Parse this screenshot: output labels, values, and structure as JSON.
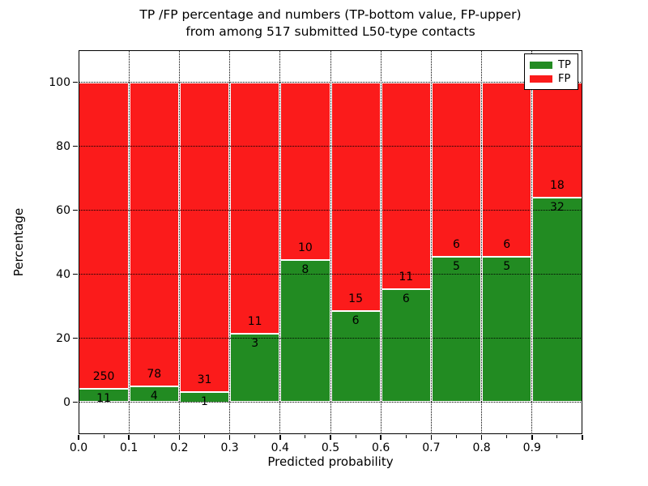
{
  "chart_data": {
    "type": "bar",
    "stacked": true,
    "normalized_to_percent": true,
    "title_line1": "TP /FP percentage and numbers (TP-bottom value, FP-upper)",
    "title_line2": "from among 517 submitted L50-type contacts",
    "xlabel": "Predicted probability",
    "ylabel": "Percentage",
    "total_contacts": 517,
    "xlim": [
      0.0,
      1.0
    ],
    "ylim": [
      -10,
      110
    ],
    "grid": "dotted",
    "bin_edges": [
      0.0,
      0.1,
      0.2,
      0.3,
      0.4,
      0.5,
      0.6,
      0.7,
      0.8,
      0.9,
      1.0
    ],
    "categories": [
      "0.0-0.1",
      "0.1-0.2",
      "0.2-0.3",
      "0.3-0.4",
      "0.4-0.5",
      "0.5-0.6",
      "0.6-0.7",
      "0.7-0.8",
      "0.8-0.9",
      "0.9-1.0"
    ],
    "series": [
      {
        "name": "TP",
        "color": "#228B22",
        "counts": [
          11,
          4,
          1,
          3,
          8,
          6,
          6,
          5,
          5,
          32
        ]
      },
      {
        "name": "FP",
        "color": "#FB1B1B",
        "counts": [
          250,
          78,
          31,
          11,
          10,
          15,
          11,
          6,
          6,
          18
        ]
      }
    ],
    "tp_percent": [
      4.21,
      4.88,
      3.13,
      21.43,
      44.44,
      28.57,
      35.29,
      45.45,
      45.45,
      64.0
    ],
    "x_ticks": [
      {
        "value": 0.0,
        "label": "0.0"
      },
      {
        "value": 0.1,
        "label": "0.1"
      },
      {
        "value": 0.2,
        "label": "0.2"
      },
      {
        "value": 0.3,
        "label": "0.3"
      },
      {
        "value": 0.4,
        "label": "0.4"
      },
      {
        "value": 0.5,
        "label": "0.5"
      },
      {
        "value": 0.6,
        "label": "0.6"
      },
      {
        "value": 0.7,
        "label": "0.7"
      },
      {
        "value": 0.8,
        "label": "0.8"
      },
      {
        "value": 0.9,
        "label": "0.9"
      },
      {
        "value": 1.0,
        "label": ""
      }
    ],
    "x_minor_ticks": [
      0.05,
      0.15,
      0.25,
      0.35,
      0.45,
      0.55,
      0.65,
      0.75,
      0.85,
      0.95
    ],
    "y_ticks": [
      0,
      20,
      40,
      60,
      80,
      100
    ],
    "legend": {
      "position": "upper right",
      "entries": [
        {
          "label": "TP",
          "color": "#228B22"
        },
        {
          "label": "FP",
          "color": "#FB1B1B"
        }
      ]
    }
  }
}
